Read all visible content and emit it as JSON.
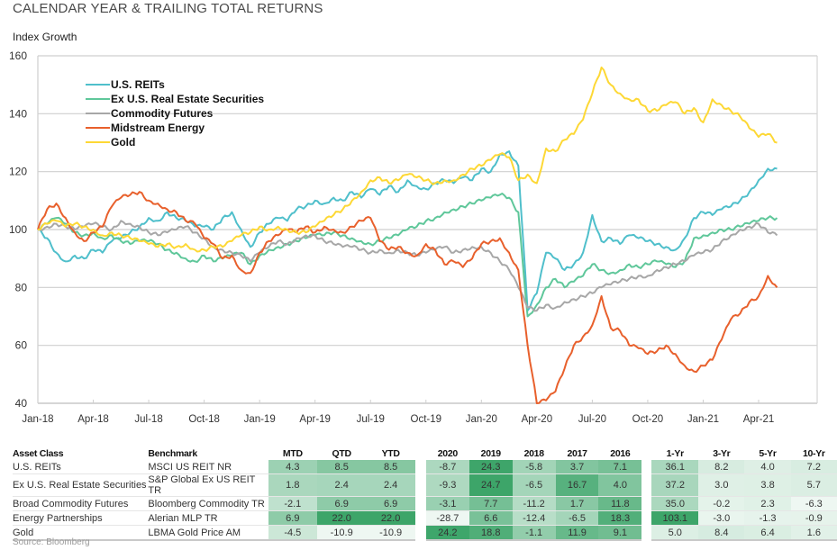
{
  "title": "CALENDAR YEAR & TRAILING TOTAL RETURNS",
  "subtitle": "Index Growth",
  "source": "Source: Bloomberg",
  "chart_data": {
    "type": "line",
    "ylabel": "Index Growth",
    "ylim": [
      40,
      160
    ],
    "yticks": [
      40,
      60,
      80,
      100,
      120,
      140,
      160
    ],
    "xlim_months": [
      0,
      39.3
    ],
    "xticks": [
      {
        "label": "Jan-18",
        "m": 0
      },
      {
        "label": "Apr-18",
        "m": 3
      },
      {
        "label": "Jul-18",
        "m": 6
      },
      {
        "label": "Oct-18",
        "m": 9
      },
      {
        "label": "Jan-19",
        "m": 12
      },
      {
        "label": "Apr-19",
        "m": 15
      },
      {
        "label": "Jul-19",
        "m": 18
      },
      {
        "label": "Oct-19",
        "m": 21
      },
      {
        "label": "Jan-20",
        "m": 24
      },
      {
        "label": "Apr-20",
        "m": 27
      },
      {
        "label": "Jul-20",
        "m": 30
      },
      {
        "label": "Oct-20",
        "m": 33
      },
      {
        "label": "Jan-21",
        "m": 36
      },
      {
        "label": "Apr-21",
        "m": 39
      }
    ],
    "grid": "horizontal",
    "legend": "top-left",
    "x_step_months": 0.5,
    "series": [
      {
        "name": "U.S. REITs",
        "color": "#4fbfcb",
        "values": [
          100,
          97,
          92,
          89,
          91,
          90,
          93,
          92,
          96,
          97,
          99,
          101,
          104,
          103,
          106,
          104,
          103,
          101,
          101,
          100,
          104,
          106,
          100,
          94,
          99,
          102,
          104,
          103,
          107,
          108,
          110,
          109,
          111,
          110,
          113,
          111,
          114,
          112,
          115,
          113,
          117,
          115,
          114,
          116,
          117,
          116,
          118,
          117,
          121,
          120,
          126,
          127,
          122,
          72,
          78,
          92,
          90,
          86,
          88,
          92,
          105,
          96,
          97,
          95,
          98,
          97,
          96,
          95,
          94,
          93,
          97,
          104,
          106,
          105,
          107,
          108,
          110,
          113,
          117,
          121,
          121
        ]
      },
      {
        "name": "Ex U.S. Real Estate Securities",
        "color": "#5fc79a",
        "values": [
          100,
          102,
          104,
          102,
          99,
          98,
          99,
          97,
          98,
          96,
          95,
          96,
          96,
          95,
          93,
          92,
          90,
          89,
          91,
          89,
          90,
          91,
          92,
          88,
          91,
          93,
          94,
          95,
          96,
          97,
          98,
          98,
          99,
          98,
          97,
          96,
          95,
          96,
          97,
          98,
          100,
          101,
          103,
          104,
          106,
          107,
          108,
          109,
          110,
          111,
          112,
          111,
          106,
          70,
          74,
          80,
          83,
          80,
          82,
          84,
          88,
          86,
          85,
          86,
          88,
          87,
          88,
          89,
          88,
          87,
          89,
          97,
          98,
          99,
          100,
          100,
          101,
          102,
          103,
          104,
          104
        ]
      },
      {
        "name": "Commodity Futures",
        "color": "#a7a7a7",
        "values": [
          100,
          101,
          102,
          101,
          100,
          101,
          102,
          101,
          100,
          103,
          102,
          101,
          99,
          98,
          99,
          100,
          101,
          99,
          97,
          94,
          93,
          92,
          91,
          89,
          92,
          94,
          96,
          95,
          97,
          98,
          98,
          96,
          95,
          94,
          94,
          93,
          92,
          93,
          92,
          93,
          92,
          91,
          92,
          93,
          94,
          92,
          93,
          94,
          94,
          92,
          89,
          86,
          80,
          73,
          72,
          74,
          73,
          75,
          76,
          77,
          78,
          80,
          81,
          82,
          83,
          84,
          84,
          86,
          87,
          88,
          89,
          91,
          92,
          93,
          96,
          98,
          100,
          101,
          102,
          99,
          98
        ]
      },
      {
        "name": "Midstream Energy",
        "color": "#e8602c",
        "values": [
          100,
          107,
          109,
          104,
          99,
          96,
          99,
          101,
          108,
          111,
          112,
          113,
          110,
          109,
          107,
          106,
          103,
          102,
          97,
          95,
          90,
          91,
          86,
          85,
          92,
          96,
          98,
          100,
          99,
          101,
          99,
          101,
          100,
          99,
          101,
          103,
          104,
          96,
          93,
          94,
          92,
          91,
          95,
          93,
          88,
          89,
          87,
          90,
          95,
          96,
          97,
          92,
          86,
          60,
          40,
          41,
          44,
          52,
          60,
          63,
          67,
          77,
          66,
          65,
          60,
          59,
          57,
          58,
          60,
          57,
          53,
          51,
          53,
          55,
          62,
          69,
          71,
          75,
          77,
          84,
          80
        ]
      },
      {
        "name": "Gold",
        "color": "#fdd835",
        "values": [
          100,
          102,
          103,
          101,
          102,
          101,
          100,
          98,
          99,
          98,
          97,
          96,
          95,
          94,
          95,
          94,
          95,
          93,
          93,
          94,
          94,
          96,
          98,
          99,
          101,
          100,
          101,
          100,
          99,
          99,
          101,
          103,
          105,
          107,
          110,
          113,
          117,
          118,
          116,
          117,
          119,
          118,
          117,
          116,
          117,
          117,
          119,
          121,
          122,
          124,
          126,
          125,
          117,
          119,
          116,
          128,
          127,
          131,
          133,
          138,
          147,
          156,
          150,
          147,
          145,
          145,
          141,
          141,
          143,
          144,
          140,
          142,
          137,
          145,
          143,
          141,
          139,
          135,
          132,
          133,
          130
        ]
      }
    ]
  },
  "table": {
    "headers": {
      "asset_class": "Asset Class",
      "benchmark": "Benchmark",
      "trailing_short": [
        "MTD",
        "QTD",
        "YTD"
      ],
      "calendar": [
        "2020",
        "2019",
        "2018",
        "2017",
        "2016"
      ],
      "trailing_long": [
        "1-Yr",
        "3-Yr",
        "5-Yr",
        "10-Yr"
      ]
    },
    "rows": [
      {
        "asset_class": "U.S. REITs",
        "benchmark": "MSCI US REIT NR",
        "short": [
          "4.3",
          "8.5",
          "8.5"
        ],
        "calendar": [
          "-8.7",
          "24.3",
          "-5.8",
          "3.7",
          "7.1"
        ],
        "long": [
          "36.1",
          "8.2",
          "4.0",
          "7.2"
        ]
      },
      {
        "asset_class": "Ex U.S. Real Estate Securities",
        "benchmark": "S&P Global Ex US REIT TR",
        "short": [
          "1.8",
          "2.4",
          "2.4"
        ],
        "calendar": [
          "-9.3",
          "24.7",
          "-6.5",
          "16.7",
          "4.0"
        ],
        "long": [
          "37.2",
          "3.0",
          "3.8",
          "5.7"
        ]
      },
      {
        "asset_class": "Broad Commodity Futures",
        "benchmark": "Bloomberg Commodity TR",
        "short": [
          "-2.1",
          "6.9",
          "6.9"
        ],
        "calendar": [
          "-3.1",
          "7.7",
          "-11.2",
          "1.7",
          "11.8"
        ],
        "long": [
          "35.0",
          "-0.2",
          "2.3",
          "-6.3"
        ]
      },
      {
        "asset_class": "Energy Partnerships",
        "benchmark": "Alerian MLP TR",
        "short": [
          "6.9",
          "22.0",
          "22.0"
        ],
        "calendar": [
          "-28.7",
          "6.6",
          "-12.4",
          "-6.5",
          "18.3"
        ],
        "long": [
          "103.1",
          "-3.0",
          "-1.3",
          "-0.9"
        ]
      },
      {
        "asset_class": "Gold",
        "benchmark": "LBMA Gold Price AM",
        "short": [
          "-4.5",
          "-10.9",
          "-10.9"
        ],
        "calendar": [
          "24.2",
          "18.8",
          "-1.1",
          "11.9",
          "9.1"
        ],
        "long": [
          "5.0",
          "8.4",
          "6.4",
          "1.6"
        ]
      }
    ],
    "heat_colors": {
      "low": "#ffffff",
      "high": "#2e9e5e"
    }
  }
}
